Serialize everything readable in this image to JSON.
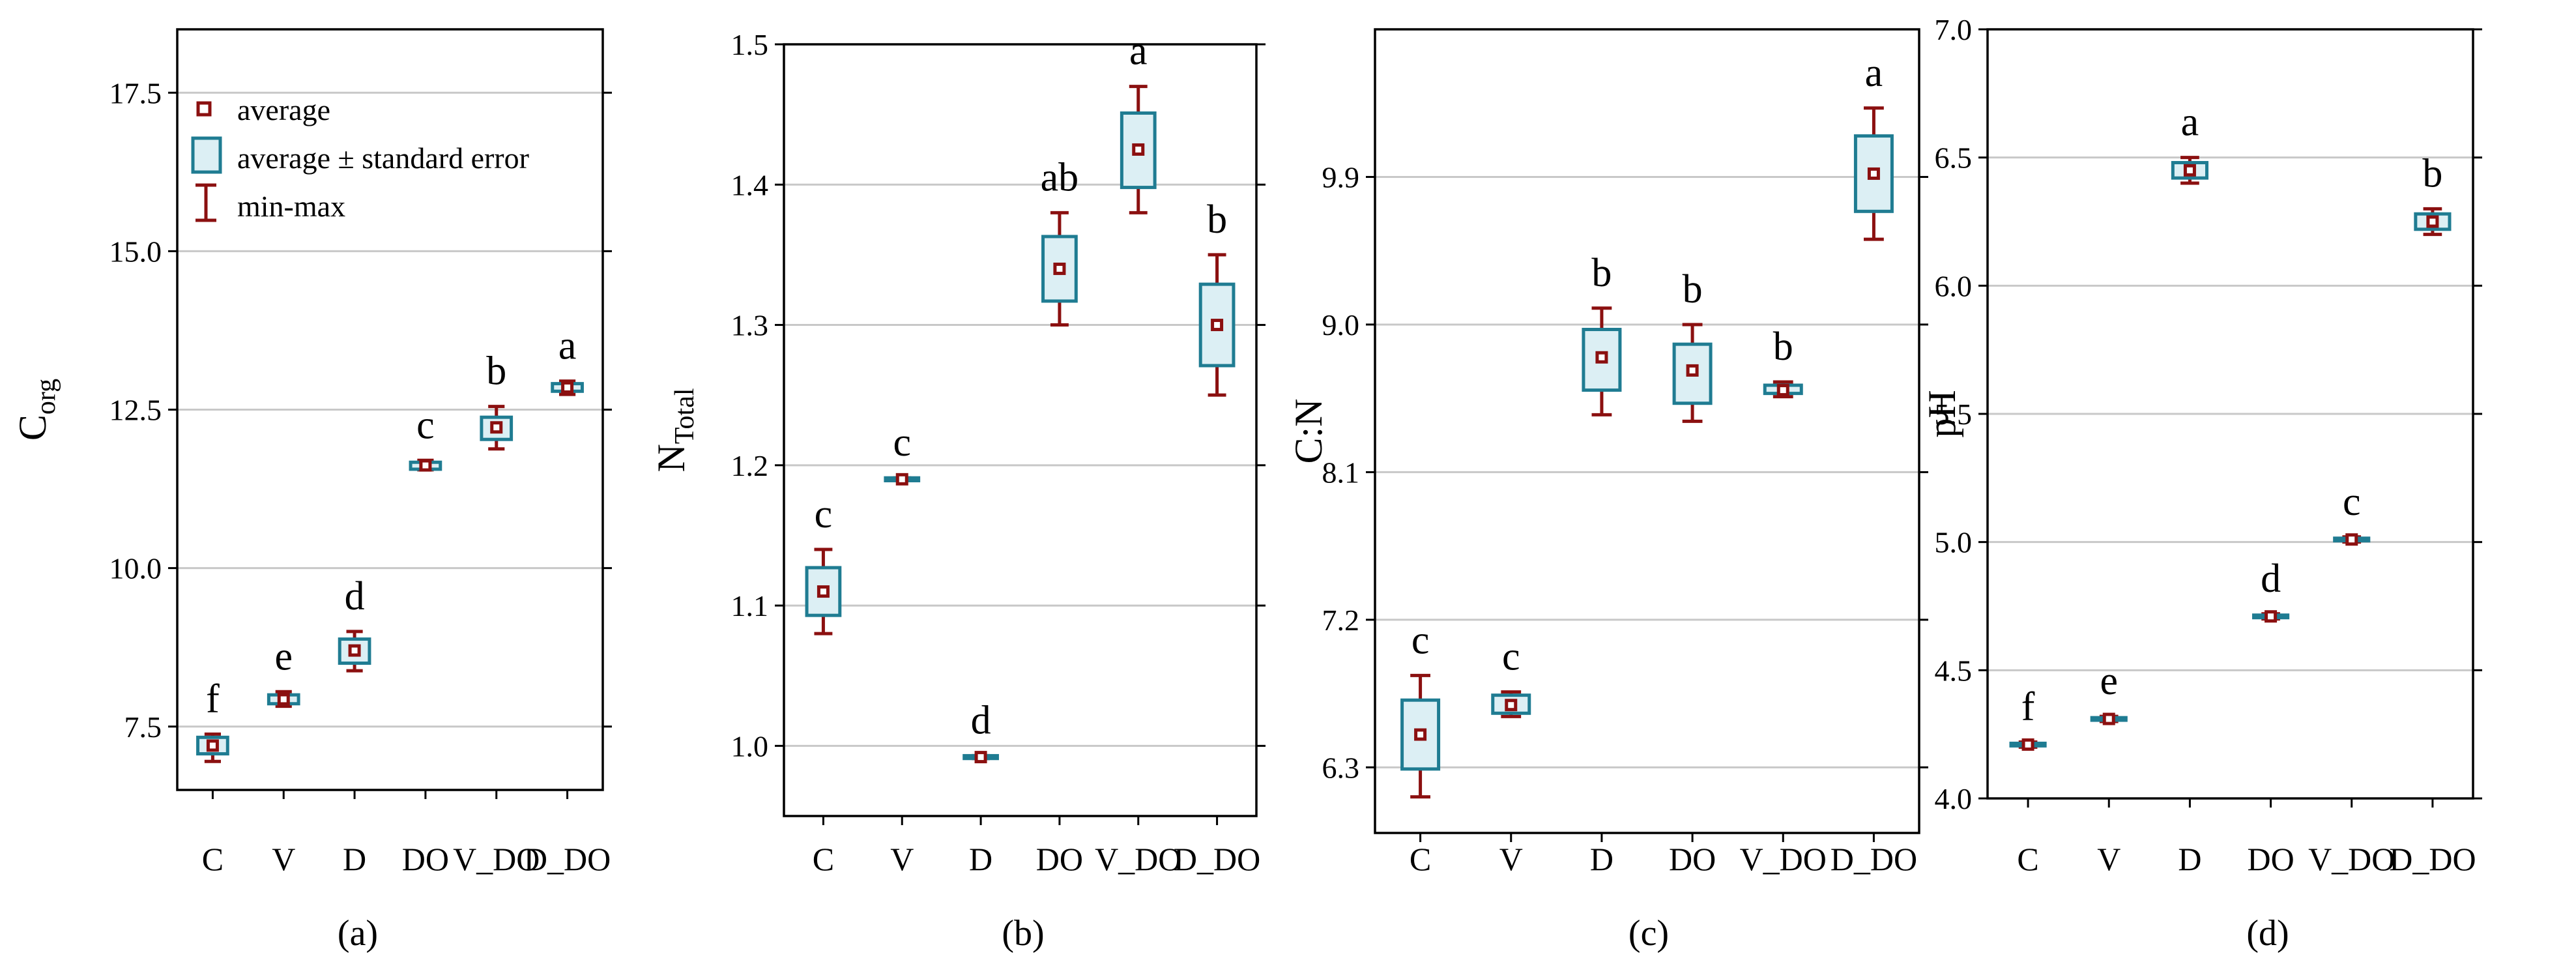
{
  "chart_data": [
    {
      "type": "box",
      "panel_label": "(a)",
      "ylabel_main": "C",
      "ylabel_sub": "org",
      "ylim": [
        6.5,
        18.5
      ],
      "yticks": [
        7.5,
        10.0,
        12.5,
        15.0,
        17.5
      ],
      "ytick_labels": [
        "7.5",
        "10.0",
        "12.5",
        "15.0",
        "17.5"
      ],
      "categories": [
        "C",
        "V",
        "D",
        "DO",
        "V_DO",
        "D_DO"
      ],
      "means": [
        7.2,
        7.93,
        8.7,
        11.62,
        12.22,
        12.85
      ],
      "se_low": [
        7.07,
        7.86,
        8.5,
        11.56,
        12.03,
        12.79
      ],
      "se_high": [
        7.33,
        8.0,
        8.88,
        11.67,
        12.38,
        12.91
      ],
      "min": [
        6.95,
        7.82,
        8.38,
        11.55,
        11.88,
        12.74
      ],
      "max": [
        7.38,
        8.05,
        9.0,
        11.7,
        12.55,
        12.95
      ],
      "letters": [
        "f",
        "e",
        "d",
        "c",
        "b",
        "a"
      ],
      "legend": {
        "average": "average",
        "se": "average ± standard error",
        "minmax": "min-max"
      }
    },
    {
      "type": "box",
      "panel_label": "(b)",
      "ylabel_main": "N",
      "ylabel_sub": "Total",
      "ylim": [
        0.95,
        1.5
      ],
      "yticks": [
        1.0,
        1.1,
        1.2,
        1.3,
        1.4,
        1.5
      ],
      "ytick_labels": [
        "1.0",
        "1.1",
        "1.2",
        "1.3",
        "1.4",
        "1.5"
      ],
      "categories": [
        "C",
        "V",
        "D",
        "DO",
        "V_DO",
        "D_DO"
      ],
      "means": [
        1.11,
        1.19,
        0.992,
        1.34,
        1.425,
        1.3
      ],
      "se_low": [
        1.093,
        1.189,
        0.991,
        1.317,
        1.398,
        1.271
      ],
      "se_high": [
        1.127,
        1.191,
        0.993,
        1.363,
        1.451,
        1.329
      ],
      "min": [
        1.08,
        1.189,
        0.991,
        1.3,
        1.38,
        1.25
      ],
      "max": [
        1.14,
        1.191,
        0.993,
        1.38,
        1.47,
        1.35
      ],
      "letters": [
        "c",
        "c",
        "d",
        "ab",
        "a",
        "b"
      ]
    },
    {
      "type": "box",
      "panel_label": "(c)",
      "ylabel_main": "C:N",
      "ylabel_sub": "",
      "ylim": [
        5.9,
        10.8
      ],
      "yticks": [
        6.3,
        7.2,
        8.1,
        9.0,
        9.9
      ],
      "ytick_labels": [
        "6.3",
        "7.2",
        "8.1",
        "9.0",
        "9.9"
      ],
      "categories": [
        "C",
        "V",
        "D",
        "DO",
        "V_DO",
        "D_DO"
      ],
      "means": [
        6.5,
        6.68,
        8.8,
        8.72,
        8.6,
        9.92
      ],
      "se_low": [
        6.29,
        6.63,
        8.6,
        8.52,
        8.58,
        9.69
      ],
      "se_high": [
        6.71,
        6.74,
        8.97,
        8.88,
        8.63,
        10.15
      ],
      "min": [
        6.12,
        6.61,
        8.45,
        8.41,
        8.56,
        9.52
      ],
      "max": [
        6.86,
        6.76,
        9.1,
        9.0,
        8.65,
        10.32
      ],
      "letters": [
        "c",
        "c",
        "b",
        "b",
        "b",
        "a"
      ]
    },
    {
      "type": "box",
      "panel_label": "(d)",
      "ylabel_main": "pH",
      "ylabel_sub": "",
      "ylim": [
        4.0,
        7.0
      ],
      "yticks": [
        4.0,
        4.5,
        5.0,
        5.5,
        6.0,
        6.5,
        7.0
      ],
      "ytick_labels": [
        "4.0",
        "4.5",
        "5.0",
        "5.5",
        "6.0",
        "6.5",
        "7.0"
      ],
      "categories": [
        "C",
        "V",
        "D",
        "DO",
        "V_DO",
        "D_DO"
      ],
      "means": [
        4.21,
        4.31,
        6.45,
        4.71,
        5.01,
        6.25
      ],
      "se_low": [
        4.205,
        4.305,
        6.42,
        4.705,
        5.005,
        6.22
      ],
      "se_high": [
        4.215,
        4.315,
        6.48,
        4.715,
        5.015,
        6.28
      ],
      "min": [
        4.2,
        4.3,
        6.4,
        4.7,
        5.0,
        6.2
      ],
      "max": [
        4.22,
        4.32,
        6.5,
        4.72,
        5.02,
        6.3
      ],
      "letters": [
        "f",
        "e",
        "a",
        "d",
        "c",
        "b"
      ]
    }
  ],
  "colors": {
    "box_fill": "#dceff4",
    "box_edge": "#1f7c92",
    "whisker": "#8b1010",
    "grid": "#c8c8c8"
  }
}
